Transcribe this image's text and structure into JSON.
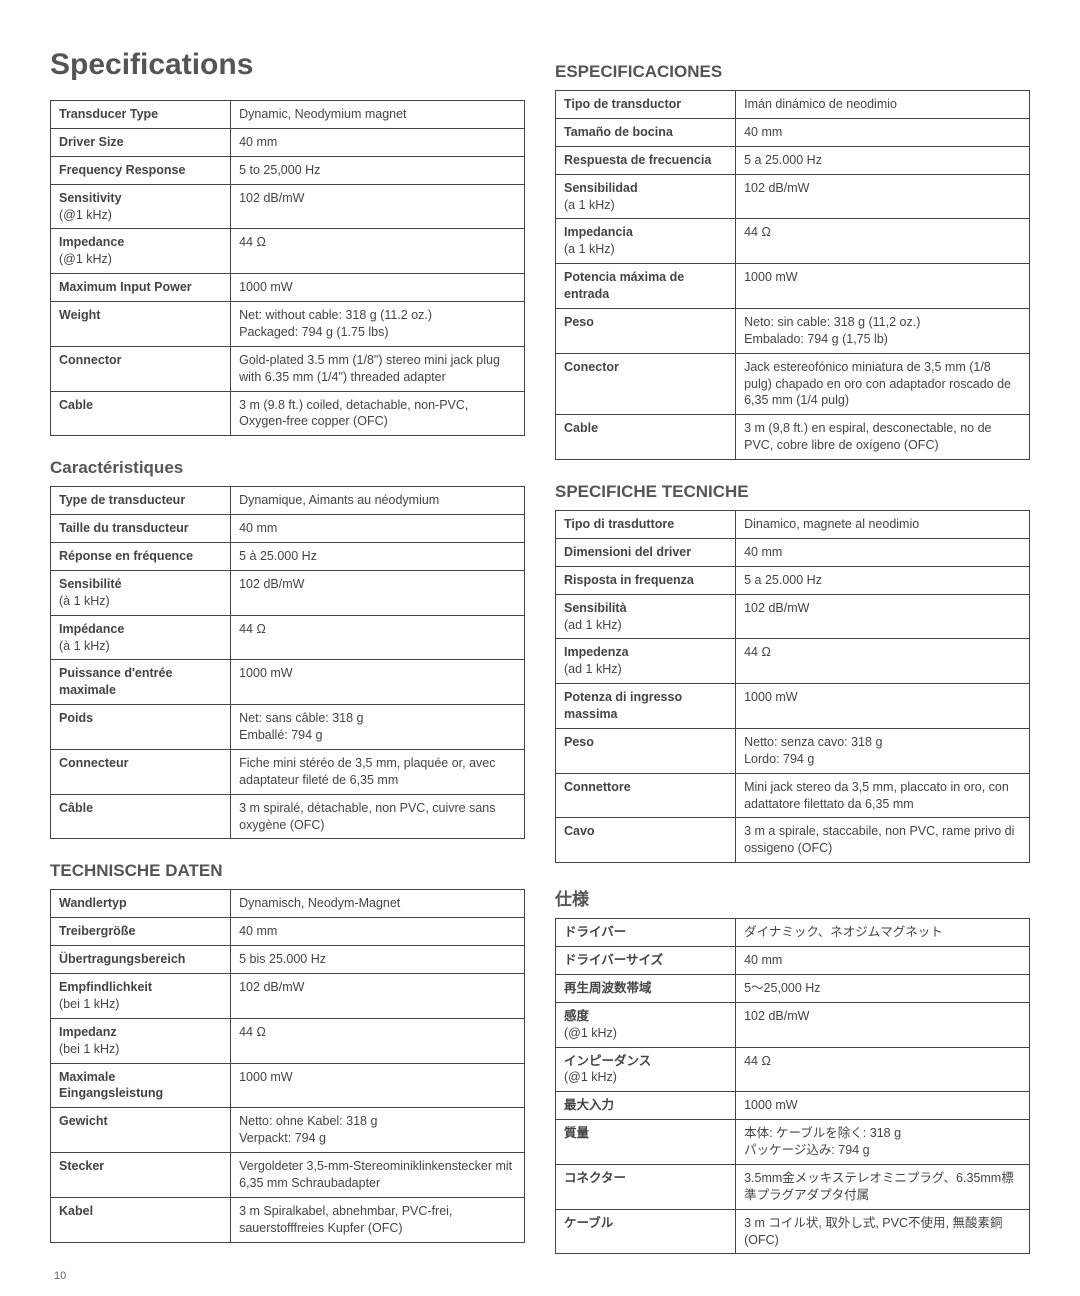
{
  "page_number": "10",
  "left_col": {
    "main_title": "Specifications",
    "sections": [
      {
        "title": "",
        "rows": [
          {
            "label": "Transducer Type",
            "sub": "",
            "value": "Dynamic, Neodymium magnet"
          },
          {
            "label": "Driver Size",
            "sub": "",
            "value": "40 mm"
          },
          {
            "label": "Frequency Response",
            "sub": "",
            "value": "5 to 25,000 Hz"
          },
          {
            "label": "Sensitivity",
            "sub": "(@1 kHz)",
            "value": "102 dB/mW"
          },
          {
            "label": "Impedance",
            "sub": "(@1 kHz)",
            "value": "44 Ω"
          },
          {
            "label": "Maximum Input Power",
            "sub": "",
            "value": "1000 mW"
          },
          {
            "label": "Weight",
            "sub": "",
            "value": "Net: without cable: 318 g (11.2 oz.)\nPackaged: 794 g (1.75 lbs)"
          },
          {
            "label": "Connector",
            "sub": "",
            "value": "Gold-plated 3.5 mm (1/8\") stereo mini jack plug with 6.35 mm (1/4\") threaded adapter"
          },
          {
            "label": "Cable",
            "sub": "",
            "value": "3 m (9.8 ft.) coiled, detachable, non-PVC, Oxygen-free copper (OFC)"
          }
        ]
      },
      {
        "title": "Caractéristiques",
        "rows": [
          {
            "label": "Type de transducteur",
            "sub": "",
            "value": "Dynamique, Aimants au néodymium"
          },
          {
            "label": "Taille du transducteur",
            "sub": "",
            "value": "40 mm"
          },
          {
            "label": "Réponse en fréquence",
            "sub": "",
            "value": "5 à 25.000 Hz"
          },
          {
            "label": "Sensibilité",
            "sub": "(à 1 kHz)",
            "value": "102 dB/mW"
          },
          {
            "label": "Impédance",
            "sub": "(à 1 kHz)",
            "value": "44 Ω"
          },
          {
            "label": "Puissance d'entrée maximale",
            "sub": "",
            "value": "1000 mW"
          },
          {
            "label": "Poids",
            "sub": "",
            "value": "Net: sans câble: 318 g\nEmballé: 794 g"
          },
          {
            "label": "Connecteur",
            "sub": "",
            "value": "Fiche mini stéréo de 3,5 mm, plaquée or, avec adaptateur fileté de 6,35 mm"
          },
          {
            "label": "Câble",
            "sub": "",
            "value": "3 m spiralé, détachable, non PVC, cuivre sans oxygène (OFC)"
          }
        ]
      },
      {
        "title": "TECHNISCHE DATEN",
        "rows": [
          {
            "label": "Wandlertyp",
            "sub": "",
            "value": "Dynamisch, Neodym-Magnet"
          },
          {
            "label": "Treibergröße",
            "sub": "",
            "value": "40 mm"
          },
          {
            "label": "Übertragungsbereich",
            "sub": "",
            "value": "5 bis 25.000 Hz"
          },
          {
            "label": "Empfindlichkeit",
            "sub": "(bei 1 kHz)",
            "value": "102 dB/mW"
          },
          {
            "label": "Impedanz",
            "sub": "(bei 1 kHz)",
            "value": "44 Ω"
          },
          {
            "label": "Maximale Eingangsleistung",
            "sub": "",
            "value": "1000 mW"
          },
          {
            "label": "Gewicht",
            "sub": "",
            "value": "Netto: ohne Kabel: 318 g\nVerpackt: 794 g"
          },
          {
            "label": "Stecker",
            "sub": "",
            "value": "Vergoldeter 3,5-mm-Stereominiklinkenstecker mit 6,35 mm Schraubadapter"
          },
          {
            "label": "Kabel",
            "sub": "",
            "value": "3 m Spiralkabel, abnehmbar, PVC-frei, sauerstofffreies Kupfer (OFC)"
          }
        ]
      }
    ]
  },
  "right_col": {
    "sections": [
      {
        "title": "ESPECIFICACIONES",
        "rows": [
          {
            "label": "Tipo de transductor",
            "sub": "",
            "value": "Imán dinámico de neodimio"
          },
          {
            "label": "Tamaño de bocina",
            "sub": "",
            "value": "40 mm"
          },
          {
            "label": "Respuesta de frecuencia",
            "sub": "",
            "value": "5 a 25.000 Hz"
          },
          {
            "label": "Sensibilidad",
            "sub": "(a 1 kHz)",
            "value": "102 dB/mW"
          },
          {
            "label": "Impedancia",
            "sub": "(a 1 kHz)",
            "value": "44 Ω"
          },
          {
            "label": "Potencia máxima de entrada",
            "sub": "",
            "value": "1000 mW"
          },
          {
            "label": "Peso",
            "sub": "",
            "value": "Neto: sin cable: 318 g (11,2 oz.)\nEmbalado: 794 g (1,75 lb)"
          },
          {
            "label": "Conector",
            "sub": "",
            "value": "Jack estereofónico miniatura de 3,5 mm (1/8 pulg) chapado en oro con adaptador roscado de 6,35 mm (1/4 pulg)"
          },
          {
            "label": "Cable",
            "sub": "",
            "value": "3 m (9,8 ft.) en espiral, desconectable, no de PVC, cobre libre de oxígeno (OFC)"
          }
        ]
      },
      {
        "title": "SPECIFICHE TECNICHE",
        "rows": [
          {
            "label": "Tipo di trasduttore",
            "sub": "",
            "value": "Dinamico, magnete al neodimio"
          },
          {
            "label": "Dimensioni del driver",
            "sub": "",
            "value": "40 mm"
          },
          {
            "label": "Risposta in frequenza",
            "sub": "",
            "value": "5 a 25.000 Hz"
          },
          {
            "label": "Sensibilità",
            "sub": "(ad 1 kHz)",
            "value": "102 dB/mW"
          },
          {
            "label": "Impedenza",
            "sub": "(ad 1 kHz)",
            "value": "44 Ω"
          },
          {
            "label": "Potenza di ingresso massima",
            "sub": "",
            "value": "1000 mW"
          },
          {
            "label": "Peso",
            "sub": "",
            "value": "Netto: senza cavo: 318 g\nLordo: 794 g"
          },
          {
            "label": "Connettore",
            "sub": "",
            "value": "Mini jack stereo da 3,5 mm, placcato in oro, con adattatore filettato da 6,35 mm"
          },
          {
            "label": "Cavo",
            "sub": "",
            "value": "3 m a spirale, staccabile, non PVC, rame privo di ossigeno (OFC)"
          }
        ]
      },
      {
        "title": "仕様",
        "rows": [
          {
            "label": "ドライバー",
            "sub": "",
            "value": "ダイナミック、ネオジムマグネット"
          },
          {
            "label": "ドライバーサイズ",
            "sub": "",
            "value": "40 mm"
          },
          {
            "label": "再生周波数帯域",
            "sub": "",
            "value": "5～25,000 Hz"
          },
          {
            "label": "感度",
            "sub": "(@1 kHz)",
            "value": "102 dB/mW"
          },
          {
            "label": "インピーダンス",
            "sub": "(@1 kHz)",
            "value": "44 Ω"
          },
          {
            "label": "最大入力",
            "sub": "",
            "value": "1000 mW"
          },
          {
            "label": "質量",
            "sub": "",
            "value": "本体: ケーブルを除く: 318 g\nパッケージ込み: 794 g"
          },
          {
            "label": "コネクター",
            "sub": "",
            "value": "3.5mm金メッキステレオミニプラグ、6.35mm標準プラグアダプタ付属"
          },
          {
            "label": "ケーブル",
            "sub": "",
            "value": "3 m コイル状, 取外し式, PVC不使用, 無酸素銅(OFC)"
          }
        ]
      }
    ]
  }
}
